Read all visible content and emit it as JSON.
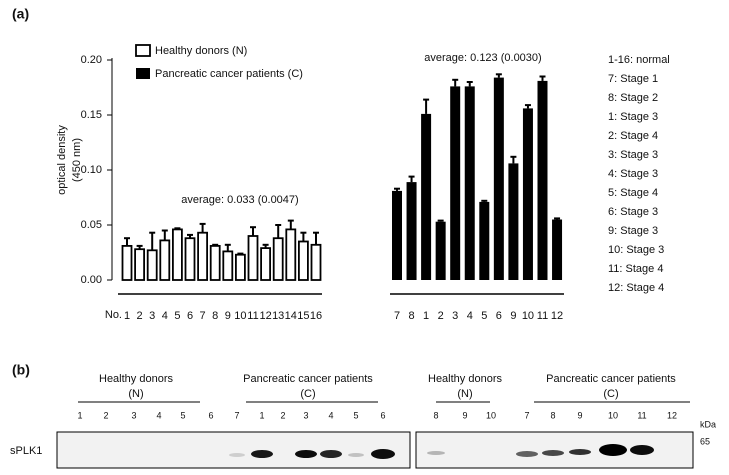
{
  "chart_data": {
    "type": "bar",
    "panel": "(a)",
    "y_label": [
      "optical density",
      "(450 nm)"
    ],
    "x_label": "No.",
    "categories": [
      "1",
      "2",
      "3",
      "4",
      "5",
      "6",
      "7",
      "8",
      "9",
      "10",
      "11",
      "12",
      "13",
      "14",
      "15",
      "16",
      "7",
      "8",
      "1",
      "2",
      "3",
      "4",
      "5",
      "6",
      "9",
      "10",
      "11",
      "12"
    ],
    "series": [
      {
        "name": "Healthy donors (N)",
        "color": "#ffffff",
        "values": [
          0.031,
          0.028,
          0.027,
          0.036,
          0.046,
          0.038,
          0.043,
          0.031,
          0.026,
          0.023,
          0.04,
          0.029,
          0.038,
          0.046,
          0.035,
          0.032,
          null,
          null,
          null,
          null,
          null,
          null,
          null,
          null,
          null,
          null,
          null,
          null
        ],
        "errors": [
          0.007,
          0.003,
          0.016,
          0.009,
          0.001,
          0.003,
          0.008,
          0.001,
          0.006,
          0.001,
          0.008,
          0.003,
          0.012,
          0.008,
          0.008,
          0.011,
          null,
          null,
          null,
          null,
          null,
          null,
          null,
          null,
          null,
          null,
          null,
          null
        ]
      },
      {
        "name": "Pancreatic cancer patients (C)",
        "color": "#000000",
        "values": [
          null,
          null,
          null,
          null,
          null,
          null,
          null,
          null,
          null,
          null,
          null,
          null,
          null,
          null,
          null,
          null,
          0.081,
          0.089,
          0.151,
          0.053,
          0.176,
          0.176,
          0.071,
          0.184,
          0.106,
          0.156,
          0.181,
          0.055
        ],
        "errors": [
          null,
          null,
          null,
          null,
          null,
          null,
          null,
          null,
          null,
          null,
          null,
          null,
          null,
          null,
          null,
          null,
          0.002,
          0.005,
          0.013,
          0.001,
          0.006,
          0.004,
          0.001,
          0.003,
          0.006,
          0.003,
          0.004,
          0.001
        ]
      }
    ],
    "ylim": [
      0,
      0.2
    ],
    "yticks": [
      {
        "value": 0,
        "label": "0.00"
      },
      {
        "value": 0.05,
        "label": "0.05"
      },
      {
        "value": 0.1,
        "label": "0.10"
      },
      {
        "value": 0.15,
        "label": "0.15"
      },
      {
        "value": 0.2,
        "label": "0.20"
      }
    ],
    "annotations": [
      "average: 0.033 (0.0047)",
      "average: 0.123 (0.0030)"
    ],
    "stages": [
      "1-16: normal",
      "7: Stage 1",
      "8: Stage 2",
      "1: Stage 3",
      "2: Stage 4",
      "3: Stage 3",
      "4: Stage 3",
      "5: Stage 4",
      "6: Stage 3",
      "9: Stage 3",
      "10: Stage 3",
      "11: Stage 4",
      "12: Stage 4"
    ]
  },
  "blot": {
    "panel": "(b)",
    "row_label": "sPLK1",
    "unit": "kDa",
    "marker": "65",
    "left": {
      "groups": [
        {
          "name": "Healthy donors",
          "code": "(N)"
        },
        {
          "name": "Pancreatic cancer patients",
          "code": "(C)"
        }
      ],
      "lanes": [
        "1",
        "2",
        "3",
        "4",
        "5",
        "6",
        "7",
        "1",
        "2",
        "3",
        "4",
        "5",
        "6"
      ]
    },
    "right": {
      "groups": [
        {
          "name": "Healthy donors",
          "code": "(N)"
        },
        {
          "name": "Pancreatic cancer patients",
          "code": "(C)"
        }
      ],
      "lanes": [
        "8",
        "9",
        "10",
        "7",
        "8",
        "9",
        "10",
        "11",
        "12"
      ]
    }
  }
}
